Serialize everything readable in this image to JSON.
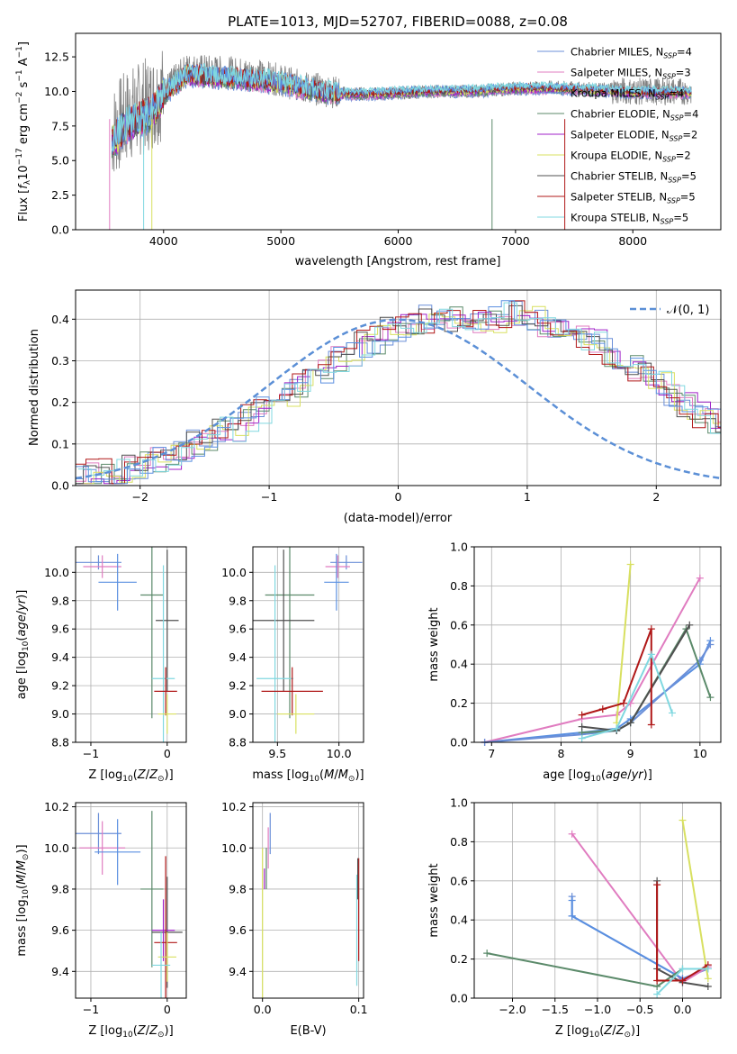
{
  "figure_title": "PLATE=1013, MJD=52707, FIBERID=0088, z=0.08",
  "model_colors": [
    "#6b8fd8",
    "#e07cc0",
    "#5a8fe0",
    "#5b8a6a",
    "#a020c8",
    "#d8e060",
    "#505050",
    "#b01818",
    "#80d8e0"
  ],
  "chart_data": [
    {
      "type": "line",
      "title": "PLATE=1013, MJD=52707, FIBERID=0088, z=0.08",
      "xlabel": "wavelength [Angstrom, rest frame]",
      "ylabel": "Flux [f_λ 10^-17 erg cm^-2 s^-1 A^-1]",
      "xlim": [
        3250,
        8750
      ],
      "ylim": [
        0,
        14.2
      ],
      "xticks": [
        4000,
        5000,
        6000,
        7000,
        8000
      ],
      "yticks": [
        "0.0",
        "2.5",
        "5.0",
        "7.5",
        "10.0",
        "12.5"
      ],
      "legend_position": "right",
      "series_names": [
        {
          "lbl": "Chabrier MILES, N",
          "sub": "SSP",
          "val": "=4"
        },
        {
          "lbl": "Salpeter MILES, N",
          "sub": "SSP",
          "val": "=3"
        },
        {
          "lbl": "Kroupa MILES, N",
          "sub": "SSP",
          "val": "=4"
        },
        {
          "lbl": "Chabrier ELODIE, N",
          "sub": "SSP",
          "val": "=4"
        },
        {
          "lbl": "Salpeter ELODIE, N",
          "sub": "SSP",
          "val": "=2"
        },
        {
          "lbl": "Kroupa ELODIE, N",
          "sub": "SSP",
          "val": "=2"
        },
        {
          "lbl": "Chabrier STELIB, N",
          "sub": "SSP",
          "val": "=5"
        },
        {
          "lbl": "Salpeter STELIB, N",
          "sub": "SSP",
          "val": "=5"
        },
        {
          "lbl": "Kroupa STELIB, N",
          "sub": "SSP",
          "val": "=5"
        }
      ],
      "data_wavelength": [
        3560,
        3700,
        3900,
        4000,
        4200,
        4500,
        4800,
        5000,
        5200,
        5500,
        5800,
        6000,
        6300,
        6600,
        7000,
        7300,
        7600,
        8000,
        8300,
        8500
      ],
      "data_flux": [
        7.0,
        8.3,
        9.2,
        10.0,
        11.6,
        11.4,
        11.2,
        10.8,
        10.3,
        9.9,
        9.8,
        9.9,
        10.0,
        10.0,
        10.2,
        10.3,
        10.2,
        10.0,
        10.0,
        10.0
      ],
      "model_flux": [
        6.3,
        7.6,
        8.4,
        9.8,
        11.2,
        11.0,
        10.8,
        10.6,
        10.2,
        9.8,
        9.8,
        9.9,
        10.0,
        10.0,
        10.2,
        10.2,
        10.1,
        9.9,
        9.9,
        9.9
      ]
    },
    {
      "type": "histogram",
      "xlabel": "(data-model)/error",
      "ylabel": "Normed distribution",
      "xlim": [
        -2.5,
        2.5
      ],
      "ylim": [
        0,
        0.47
      ],
      "xticks": [
        "−2",
        "−1",
        "0",
        "1",
        "2"
      ],
      "yticks": [
        "0.0",
        "0.1",
        "0.2",
        "0.3",
        "0.4"
      ],
      "legend": "𝒩(0, 1)",
      "bin_width": 0.1,
      "bin_start": -2.5,
      "histogram_mean": [
        0.02,
        0.03,
        0.03,
        0.03,
        0.04,
        0.05,
        0.06,
        0.07,
        0.08,
        0.1,
        0.11,
        0.13,
        0.14,
        0.16,
        0.18,
        0.2,
        0.22,
        0.24,
        0.26,
        0.28,
        0.3,
        0.32,
        0.34,
        0.35,
        0.37,
        0.38,
        0.39,
        0.4,
        0.4,
        0.4,
        0.39,
        0.39,
        0.4,
        0.41,
        0.41,
        0.4,
        0.39,
        0.38,
        0.37,
        0.36,
        0.34,
        0.32,
        0.3,
        0.28,
        0.26,
        0.24,
        0.21,
        0.19,
        0.17,
        0.15,
        0.13
      ]
    },
    {
      "type": "scatter",
      "xlabel": "Z [log10(Z/Z⊙)]",
      "ylabel": "age [log10(age/yr)]",
      "xlim": [
        -1.2,
        0.25
      ],
      "ylim": [
        8.8,
        10.18
      ],
      "xticks": [
        "−1",
        "0"
      ],
      "yticks": [
        "8.8",
        "9.0",
        "9.2",
        "9.4",
        "9.6",
        "9.8",
        "10.0"
      ],
      "points": [
        {
          "x": -0.9,
          "y": 10.07,
          "xerr": 0.3,
          "yerr": 0.05,
          "color": 0
        },
        {
          "x": -0.85,
          "y": 10.04,
          "xerr": 0.25,
          "yerr": 0.08,
          "color": 1
        },
        {
          "x": -0.65,
          "y": 9.93,
          "xerr": 0.25,
          "yerr": 0.2,
          "color": 2
        },
        {
          "x": -0.2,
          "y": 9.84,
          "xerr": 0.15,
          "yerr": 0.87,
          "color": 3
        },
        {
          "x": 0.0,
          "y": 9.66,
          "xerr": 0.15,
          "yerr": 0.5,
          "color": 6
        },
        {
          "x": -0.05,
          "y": 9.25,
          "xerr": 0.15,
          "yerr": 0.8,
          "color": 8
        },
        {
          "x": -0.02,
          "y": 9.16,
          "xerr": 0.15,
          "yerr": 0.17,
          "color": 7
        },
        {
          "x": 0.0,
          "y": 9.0,
          "xerr": 0.12,
          "yerr": 0.14,
          "color": 5
        }
      ]
    },
    {
      "type": "scatter",
      "xlabel": "mass [log10(M/M⊙)]",
      "xlim": [
        9.3,
        10.2
      ],
      "ylim": [
        8.8,
        10.18
      ],
      "xticks": [
        "9.5",
        "10.0"
      ],
      "yticks": [
        "8.8",
        "9.0",
        "9.2",
        "9.4",
        "9.6",
        "9.8",
        "10.0"
      ],
      "points": [
        {
          "x": 10.06,
          "y": 10.07,
          "xerr": 0.13,
          "yerr": 0.05,
          "color": 0
        },
        {
          "x": 9.99,
          "y": 10.04,
          "xerr": 0.1,
          "yerr": 0.08,
          "color": 1
        },
        {
          "x": 9.98,
          "y": 9.93,
          "xerr": 0.1,
          "yerr": 0.2,
          "color": 2
        },
        {
          "x": 9.6,
          "y": 9.84,
          "xerr": 0.2,
          "yerr": 0.87,
          "color": 3
        },
        {
          "x": 9.55,
          "y": 9.66,
          "xerr": 0.25,
          "yerr": 0.5,
          "color": 6
        },
        {
          "x": 9.48,
          "y": 9.25,
          "xerr": 0.15,
          "yerr": 0.8,
          "color": 8
        },
        {
          "x": 9.62,
          "y": 9.16,
          "xerr": 0.25,
          "yerr": 0.17,
          "color": 7
        },
        {
          "x": 9.65,
          "y": 9.0,
          "xerr": 0.15,
          "yerr": 0.14,
          "color": 5
        }
      ]
    },
    {
      "type": "line",
      "xlabel": "age  [log10(age/yr)]",
      "ylabel": "mass weight",
      "xlim": [
        6.75,
        10.3
      ],
      "ylim": [
        0,
        1
      ],
      "xticks": [
        "7",
        "8",
        "9",
        "10"
      ],
      "yticks": [
        "0.0",
        "0.2",
        "0.4",
        "0.6",
        "0.8",
        "1.0"
      ],
      "series": [
        {
          "color": 2,
          "x": [
            6.9,
            8.3,
            8.8,
            9.0,
            10.0,
            10.15
          ],
          "y": [
            0.0,
            0.05,
            0.07,
            0.12,
            0.4,
            0.52
          ]
        },
        {
          "color": 1,
          "x": [
            6.9,
            8.3,
            8.8,
            9.0,
            10.0
          ],
          "y": [
            0.0,
            0.12,
            0.14,
            0.2,
            0.84
          ]
        },
        {
          "color": 0,
          "x": [
            6.9,
            8.3,
            8.8,
            9.0,
            10.0,
            10.15
          ],
          "y": [
            0.0,
            0.04,
            0.06,
            0.1,
            0.42,
            0.5
          ]
        },
        {
          "color": 3,
          "x": [
            8.3,
            8.8,
            9.0,
            9.8,
            10.15
          ],
          "y": [
            0.05,
            0.06,
            0.1,
            0.58,
            0.23
          ]
        },
        {
          "color": 5,
          "x": [
            8.8,
            9.0
          ],
          "y": [
            0.1,
            0.91
          ]
        },
        {
          "color": 6,
          "x": [
            8.3,
            8.8,
            9.0,
            9.85
          ],
          "y": [
            0.08,
            0.06,
            0.1,
            0.6
          ]
        },
        {
          "color": 7,
          "x": [
            8.3,
            8.6,
            8.9,
            9.3,
            9.3
          ],
          "y": [
            0.14,
            0.17,
            0.2,
            0.58,
            0.09
          ]
        },
        {
          "color": 8,
          "x": [
            8.3,
            8.8,
            9.3,
            9.6
          ],
          "y": [
            0.02,
            0.07,
            0.45,
            0.15
          ]
        }
      ]
    },
    {
      "type": "scatter",
      "xlabel": "Z [log10(Z/Z⊙)]",
      "ylabel": "mass [log10(M/M⊙)]",
      "xlim": [
        -1.2,
        0.25
      ],
      "ylim": [
        9.27,
        10.22
      ],
      "xticks": [
        "−1",
        "0"
      ],
      "yticks": [
        "9.4",
        "9.6",
        "9.8",
        "10.0",
        "10.2"
      ],
      "points": [
        {
          "x": -0.9,
          "y": 10.07,
          "xerr": 0.3,
          "yerr": 0.1,
          "color": 0
        },
        {
          "x": -0.85,
          "y": 10.0,
          "xerr": 0.3,
          "yerr": 0.13,
          "color": 1
        },
        {
          "x": -0.65,
          "y": 9.98,
          "xerr": 0.3,
          "yerr": 0.16,
          "color": 2
        },
        {
          "x": -0.2,
          "y": 9.8,
          "xerr": 0.15,
          "yerr": 0.38,
          "color": 3
        },
        {
          "x": 0.0,
          "y": 9.59,
          "xerr": 0.2,
          "yerr": 0.27,
          "color": 6
        },
        {
          "x": -0.05,
          "y": 9.6,
          "xerr": 0.15,
          "yerr": 0.15,
          "color": 4
        },
        {
          "x": -0.02,
          "y": 9.54,
          "xerr": 0.15,
          "yerr": 0.42,
          "color": 7
        },
        {
          "x": 0.0,
          "y": 9.47,
          "xerr": 0.12,
          "yerr": 0.12,
          "color": 5
        },
        {
          "x": -0.08,
          "y": 9.43,
          "xerr": 0.12,
          "yerr": 0.16,
          "color": 8
        }
      ]
    },
    {
      "type": "scatter",
      "xlabel": "E(B-V)",
      "xlim": [
        -0.01,
        0.105
      ],
      "ylim": [
        9.27,
        10.22
      ],
      "xticks": [
        "0.0",
        "0.1"
      ],
      "yticks": [
        "9.4",
        "9.6",
        "9.8",
        "10.0",
        "10.2"
      ],
      "points": [
        {
          "x": 0.0,
          "y": 9.6,
          "yerr": 0.4,
          "color": 5
        },
        {
          "x": 0.002,
          "y": 9.85,
          "yerr": 0.05,
          "color": 4
        },
        {
          "x": 0.004,
          "y": 9.9,
          "yerr": 0.1,
          "color": 3
        },
        {
          "x": 0.006,
          "y": 10.0,
          "yerr": 0.1,
          "color": 1
        },
        {
          "x": 0.008,
          "y": 10.07,
          "yerr": 0.1,
          "color": 0
        },
        {
          "x": 0.1,
          "y": 9.7,
          "yerr": 0.25,
          "color": 7
        },
        {
          "x": 0.098,
          "y": 9.6,
          "yerr": 0.27,
          "color": 8
        },
        {
          "x": 0.099,
          "y": 9.85,
          "yerr": 0.1,
          "color": 6
        }
      ]
    },
    {
      "type": "line",
      "xlabel": "Z [log10(Z/Z⊙)]",
      "ylabel": "mass weight",
      "xlim": [
        -2.45,
        0.45
      ],
      "ylim": [
        0,
        1
      ],
      "xticks": [
        "−2.0",
        "−1.5",
        "−1.0",
        "−0.5",
        "0.0"
      ],
      "yticks": [
        "0.0",
        "0.2",
        "0.4",
        "0.6",
        "0.8",
        "1.0"
      ],
      "series": [
        {
          "color": 0,
          "x": [
            -1.3,
            -1.3,
            0.0,
            0.3
          ],
          "y": [
            0.52,
            0.42,
            0.1,
            0.15
          ]
        },
        {
          "color": 1,
          "x": [
            -1.3,
            0.0,
            0.3
          ],
          "y": [
            0.84,
            0.08,
            0.16
          ]
        },
        {
          "color": 2,
          "x": [
            -1.3,
            -1.3,
            0.0
          ],
          "y": [
            0.5,
            0.42,
            0.1
          ]
        },
        {
          "color": 3,
          "x": [
            -2.3,
            -0.3,
            0.0
          ],
          "y": [
            0.23,
            0.06,
            0.15
          ]
        },
        {
          "color": 5,
          "x": [
            0.0,
            0.3
          ],
          "y": [
            0.91,
            0.1
          ]
        },
        {
          "color": 6,
          "x": [
            -0.3,
            -0.3,
            0.0,
            0.3
          ],
          "y": [
            0.6,
            0.15,
            0.08,
            0.06
          ]
        },
        {
          "color": 7,
          "x": [
            -0.3,
            -0.3,
            0.0,
            0.3
          ],
          "y": [
            0.58,
            0.09,
            0.09,
            0.17
          ]
        },
        {
          "color": 8,
          "x": [
            -0.3,
            0.0,
            0.3
          ],
          "y": [
            0.02,
            0.15,
            0.15
          ]
        }
      ]
    }
  ]
}
